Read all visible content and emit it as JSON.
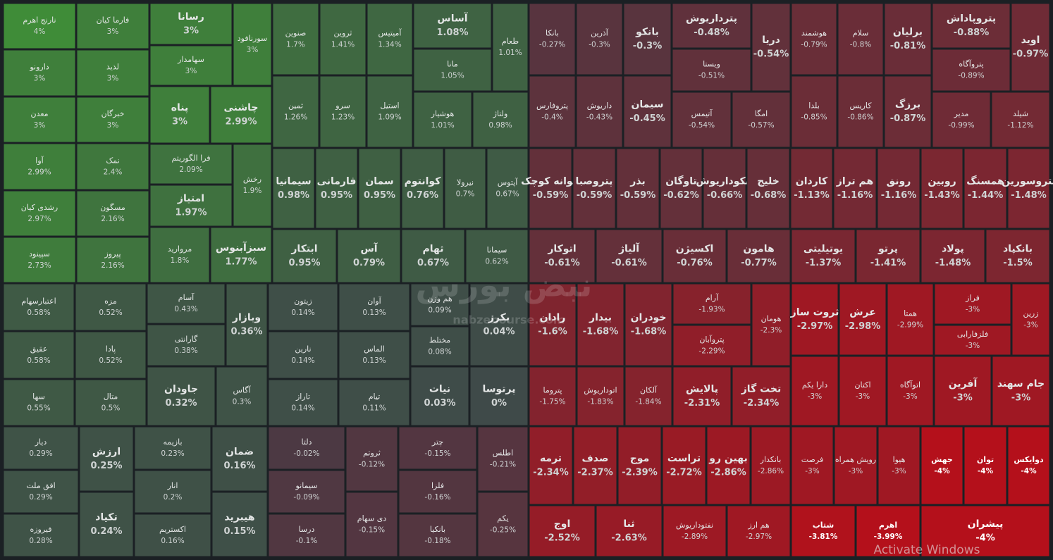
{
  "chart_data": {
    "type": "treemap",
    "categories": [
      "نارنج اهرم",
      "دارونو",
      "معدن",
      "آوا",
      "رشدی کیان",
      "سپینود",
      "فارما کیان",
      "لذیذ",
      "خبرگان",
      "نمک",
      "مسگون",
      "پیروز",
      "رسانا",
      "سهامدار",
      "سورنافود",
      "پناه",
      "چاشنی",
      "فرا الگوریتم",
      "امتیاز",
      "رخش",
      "مروارید",
      "سبزآبنوس",
      "صنوین",
      "ثروین",
      "آمیتیس",
      "آساس",
      "مانا",
      "طعام",
      "ثمین",
      "سرو",
      "استیل",
      "هوشیار",
      "ولتاژ",
      "سیمانیا",
      "فارمانی",
      "سمان",
      "کوانتوم",
      "نیرولا",
      "آپتوس",
      "ابتکار",
      "آس",
      "ثهام",
      "سیمانا",
      "اعتبارسهام",
      "عقیق",
      "سها",
      "مزه",
      "پادا",
      "متال",
      "آسام",
      "گارانتی",
      "وبازار",
      "جاودان",
      "آگاس",
      "زیتون",
      "نارین",
      "تاراز",
      "آوان",
      "الماس",
      "تیام",
      "هم وزن",
      "مختلط",
      "بکرز",
      "نیات",
      "پرتوسا",
      "دیار",
      "افق ملت",
      "فیروزه",
      "ارزش",
      "تکیاد",
      "بازیمه",
      "انار",
      "اکستریم",
      "ضمان",
      "هیبرید",
      "دلتا",
      "سیمانو",
      "درسا",
      "ثروتم",
      "دی سهام",
      "چتر",
      "فلزا",
      "بانکیا",
      "اطلس",
      "یکم",
      "بانکا",
      "آذرین",
      "بانکو",
      "پترداریوش",
      "ویستا",
      "دریا",
      "هوشمند",
      "سلام",
      "برلیان",
      "پتروپاداش",
      "پتروآگاه",
      "اوید",
      "پتروفارس",
      "داریوش",
      "سیمان",
      "آتیمس",
      "امگا",
      "بلدا",
      "کاریس",
      "برزگ",
      "مدیر",
      "شیلد",
      "جوانه کوچک",
      "پتروصبا",
      "بذر",
      "تاوگان",
      "بنکوداریوش",
      "خلیج",
      "کاردان",
      "هم تراز",
      "رونق",
      "روبین",
      "همسنگ",
      "پتروسورین",
      "اتوکار",
      "آلیاژ",
      "اکسیژن",
      "هامون",
      "یوتیلیتی",
      "پرتو",
      "پولاد",
      "بانکپاد",
      "رادان",
      "بیدار",
      "خودران",
      "آرام",
      "پتروآبان",
      "هومان",
      "پتروما",
      "اتوداریوش",
      "آلکان",
      "پالایش",
      "تخت گاز",
      "ثروت ساز",
      "عرش",
      "همتا",
      "فراز",
      "فلزفارابی",
      "زرین",
      "دارا یکم",
      "اکتان",
      "اتوآگاه",
      "آفرین",
      "جام سهند",
      "ترمه",
      "صدف",
      "موج",
      "تراست",
      "بهین رو",
      "بانکدار",
      "فرصت",
      "رویش همراه",
      "هیوا",
      "جهش",
      "توان",
      "دوایکس",
      "اوج",
      "ثنا",
      "نفتوداریوش",
      "هم ارز",
      "شتاب",
      "اهرم",
      "پیشران"
    ],
    "values": [
      4,
      3,
      3,
      2.99,
      2.97,
      2.73,
      3,
      3,
      3,
      2.4,
      2.16,
      2.16,
      3,
      3,
      3,
      3,
      2.99,
      2.09,
      1.97,
      1.9,
      1.8,
      1.77,
      1.7,
      1.41,
      1.34,
      1.08,
      1.05,
      1.01,
      1.26,
      1.23,
      1.09,
      1.01,
      0.98,
      0.98,
      0.95,
      0.95,
      0.76,
      0.7,
      0.67,
      0.95,
      0.79,
      0.67,
      0.62,
      0.58,
      0.58,
      0.55,
      0.52,
      0.52,
      0.5,
      0.43,
      0.38,
      0.36,
      0.32,
      0.3,
      0.14,
      0.14,
      0.14,
      0.13,
      0.13,
      0.11,
      0.09,
      0.08,
      0.04,
      0.03,
      0,
      0.29,
      0.29,
      0.28,
      0.25,
      0.24,
      0.23,
      0.2,
      0.16,
      0.16,
      0.15,
      -0.02,
      -0.09,
      -0.1,
      -0.12,
      -0.15,
      -0.15,
      -0.16,
      -0.18,
      -0.21,
      -0.25,
      -0.27,
      -0.3,
      -0.3,
      -0.48,
      -0.51,
      -0.54,
      -0.79,
      -0.8,
      -0.81,
      -0.88,
      -0.89,
      -0.97,
      -0.4,
      -0.43,
      -0.45,
      -0.54,
      -0.57,
      -0.85,
      -0.86,
      -0.87,
      -0.99,
      -1.12,
      -0.59,
      -0.59,
      -0.59,
      -0.62,
      -0.66,
      -0.68,
      -1.13,
      -1.16,
      -1.16,
      -1.43,
      -1.44,
      -1.48,
      -0.61,
      -0.61,
      -0.76,
      -0.77,
      -1.37,
      -1.41,
      -1.48,
      -1.5,
      -1.6,
      -1.68,
      -1.68,
      -1.93,
      -2.29,
      -2.3,
      -1.75,
      -1.83,
      -1.84,
      -2.31,
      -2.34,
      -2.97,
      -2.98,
      -2.99,
      -3,
      -3,
      -3,
      -3,
      -3,
      -3,
      -3,
      -3,
      -2.34,
      -2.37,
      -2.39,
      -2.72,
      -2.86,
      -2.86,
      -3,
      -3,
      -3,
      -4,
      -4,
      -4,
      -2.52,
      -2.63,
      -2.89,
      -2.97,
      -3.81,
      -3.99,
      -4
    ],
    "value_labels": [
      "4%",
      "3%",
      "3%",
      "2.99%",
      "2.97%",
      "2.73%",
      "3%",
      "3%",
      "3%",
      "2.4%",
      "2.16%",
      "2.16%",
      "3%",
      "3%",
      "3%",
      "3%",
      "2.99%",
      "2.09%",
      "1.97%",
      "1.9%",
      "1.8%",
      "1.77%",
      "1.7%",
      "1.41%",
      "1.34%",
      "1.08%",
      "1.05%",
      "1.01%",
      "1.26%",
      "1.23%",
      "1.09%",
      "1.01%",
      "0.98%",
      "0.98%",
      "0.95%",
      "0.95%",
      "0.76%",
      "0.7%",
      "0.67%",
      "0.95%",
      "0.79%",
      "0.67%",
      "0.62%",
      "0.58%",
      "0.58%",
      "0.55%",
      "0.52%",
      "0.52%",
      "0.5%",
      "0.43%",
      "0.38%",
      "0.36%",
      "0.32%",
      "0.3%",
      "0.14%",
      "0.14%",
      "0.14%",
      "0.13%",
      "0.13%",
      "0.11%",
      "0.09%",
      "0.08%",
      "0.04%",
      "0.03%",
      "0%",
      "0.29%",
      "0.29%",
      "0.28%",
      "0.25%",
      "0.24%",
      "0.23%",
      "0.2%",
      "0.16%",
      "0.16%",
      "0.15%",
      "-0.02%",
      "-0.09%",
      "-0.1%",
      "-0.12%",
      "-0.15%",
      "-0.15%",
      "-0.16%",
      "-0.18%",
      "-0.21%",
      "-0.25%",
      "-0.27%",
      "-0.3%",
      "-0.3%",
      "-0.48%",
      "-0.51%",
      "-0.54%",
      "-0.79%",
      "-0.8%",
      "-0.81%",
      "-0.88%",
      "-0.89%",
      "-0.97%",
      "-0.4%",
      "-0.43%",
      "-0.45%",
      "-0.54%",
      "-0.57%",
      "-0.85%",
      "-0.86%",
      "-0.87%",
      "-0.99%",
      "-1.12%",
      "-0.59%",
      "-0.59%",
      "-0.59%",
      "-0.62%",
      "-0.66%",
      "-0.68%",
      "-1.13%",
      "-1.16%",
      "-1.16%",
      "-1.43%",
      "-1.44%",
      "-1.48%",
      "-0.61%",
      "-0.61%",
      "-0.76%",
      "-0.77%",
      "-1.37%",
      "-1.41%",
      "-1.48%",
      "-1.5%",
      "-1.6%",
      "-1.68%",
      "-1.68%",
      "-1.93%",
      "-2.29%",
      "-2.3%",
      "-1.75%",
      "-1.83%",
      "-1.84%",
      "-2.31%",
      "-2.34%",
      "-2.97%",
      "-2.98%",
      "-2.99%",
      "-3%",
      "-3%",
      "-3%",
      "-3%",
      "-3%",
      "-3%",
      "-3%",
      "-3%",
      "-2.34%",
      "-2.37%",
      "-2.39%",
      "-2.72%",
      "-2.86%",
      "-2.86%",
      "-3%",
      "-3%",
      "-3%",
      "-4%",
      "-4%",
      "-4%",
      "-2.52%",
      "-2.63%",
      "-2.89%",
      "-2.97%",
      "-3.81%",
      "-3.99%",
      "-4%"
    ],
    "colors": {
      "positive": "#3f8c38",
      "neutral": "#3f4a49",
      "negative": "#b4101b"
    },
    "watermark_logo": "نبض بورس",
    "watermark": "nabzebourse.com",
    "annotation": "Activate Windows"
  }
}
